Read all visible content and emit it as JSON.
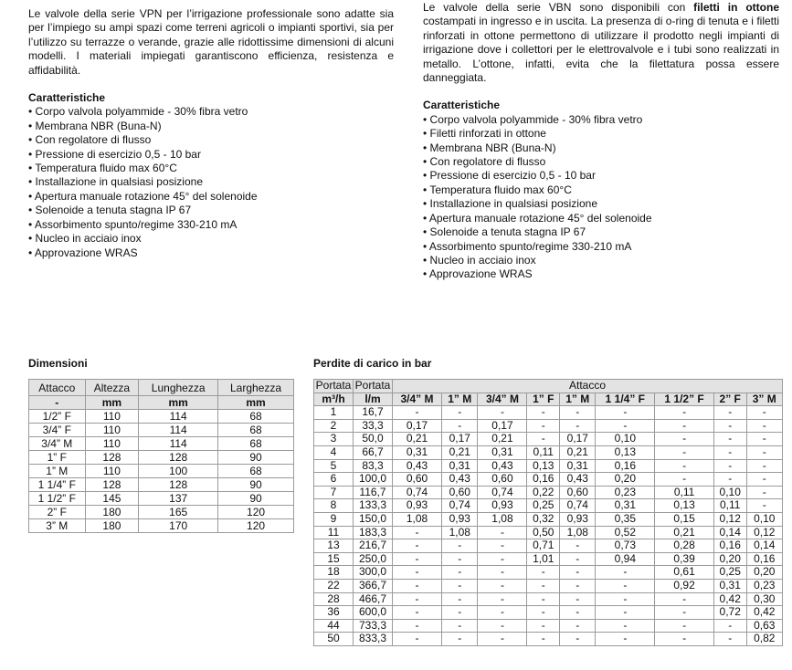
{
  "left": {
    "intro": "Le valvole della serie VPN per l’irrigazione professionale sono adatte sia per l’impiego su ampi spazi come terreni agricoli o impianti sportivi, sia per l’utilizzo su terrazze o verande, grazie alle ridottissime dimensioni di alcuni modelli. I materiali impiegati garantiscono efficienza, resistenza e affidabilità.",
    "features_title": "Caratteristiche",
    "features": [
      "Corpo valvola polyammide - 30% fibra vetro",
      "Membrana NBR (Buna-N)",
      "Con regolatore di flusso",
      "Pressione di esercizio 0,5 - 10 bar",
      "Temperatura fluido max 60°C",
      "Installazione in qualsiasi posizione",
      "Apertura manuale rotazione 45° del solenoide",
      "Solenoide a tenuta stagna IP 67",
      "Assorbimento spunto/regime 330-210 mA",
      "Nucleo in acciaio inox",
      "Approvazione WRAS"
    ]
  },
  "right": {
    "intro_a": "Le valvole della serie VBN sono disponibili con ",
    "intro_bold": "filetti in ottone",
    "intro_b": " costampati in ingresso e in uscita. La presenza di o-ring di tenuta e i filetti rinforzati in ottone permettono di utilizzare il prodotto negli impianti di irrigazione dove i collettori per le elettrovalvole e i tubi sono realizzati in metallo. L’ottone, infatti, evita che la filettatura possa essere danneggiata.",
    "features_title": "Caratteristiche",
    "features": [
      "Corpo valvola polyammide - 30% fibra vetro",
      "Filetti rinforzati in ottone",
      "Membrana NBR (Buna-N)",
      "Con regolatore di flusso",
      "Pressione di esercizio 0,5 - 10 bar",
      "Temperatura fluido max 60°C",
      "Installazione in qualsiasi posizione",
      "Apertura manuale rotazione 45° del solenoide",
      "Solenoide a tenuta stagna IP 67",
      "Assorbimento spunto/regime 330-210 mA",
      "Nucleo in acciaio inox",
      "Approvazione WRAS"
    ]
  },
  "dimensions": {
    "title": "Dimensioni",
    "headers": [
      "Attacco",
      "Altezza",
      "Lunghezza",
      "Larghezza"
    ],
    "units": [
      "-",
      "mm",
      "mm",
      "mm"
    ],
    "rows": [
      [
        "1/2” F",
        "110",
        "114",
        "68"
      ],
      [
        "3/4” F",
        "110",
        "114",
        "68"
      ],
      [
        "3/4” M",
        "110",
        "114",
        "68"
      ],
      [
        "1” F",
        "128",
        "128",
        "90"
      ],
      [
        "1” M",
        "110",
        "100",
        "68"
      ],
      [
        "1 1/4” F",
        "128",
        "128",
        "90"
      ],
      [
        "1 1/2” F",
        "145",
        "137",
        "90"
      ],
      [
        "2” F",
        "180",
        "165",
        "120"
      ],
      [
        "3” M",
        "180",
        "170",
        "120"
      ]
    ]
  },
  "pressure_loss": {
    "title": "Perdite di carico in bar",
    "header_portata": [
      "Portata",
      "Portata"
    ],
    "header_group": "Attacco",
    "units": [
      "m³/h",
      "l/m"
    ],
    "columns": [
      "3/4” M",
      "1” M",
      "3/4” M",
      "1” F",
      "1” M",
      "1 1/4” F",
      "1 1/2” F",
      "2” F",
      "3” M"
    ],
    "rows": [
      [
        "1",
        "16,7",
        "-",
        "-",
        "-",
        "-",
        "-",
        "-",
        "-",
        "-",
        "-"
      ],
      [
        "2",
        "33,3",
        "0,17",
        "-",
        "0,17",
        "-",
        "-",
        "-",
        "-",
        "-",
        "-"
      ],
      [
        "3",
        "50,0",
        "0,21",
        "0,17",
        "0,21",
        "-",
        "0,17",
        "0,10",
        "-",
        "-",
        "-"
      ],
      [
        "4",
        "66,7",
        "0,31",
        "0,21",
        "0,31",
        "0,11",
        "0,21",
        "0,13",
        "-",
        "-",
        "-"
      ],
      [
        "5",
        "83,3",
        "0,43",
        "0,31",
        "0,43",
        "0,13",
        "0,31",
        "0,16",
        "-",
        "-",
        "-"
      ],
      [
        "6",
        "100,0",
        "0,60",
        "0,43",
        "0,60",
        "0,16",
        "0,43",
        "0,20",
        "-",
        "-",
        "-"
      ],
      [
        "7",
        "116,7",
        "0,74",
        "0,60",
        "0,74",
        "0,22",
        "0,60",
        "0,23",
        "0,11",
        "0,10",
        "-"
      ],
      [
        "8",
        "133,3",
        "0,93",
        "0,74",
        "0,93",
        "0,25",
        "0,74",
        "0,31",
        "0,13",
        "0,11",
        "-"
      ],
      [
        "9",
        "150,0",
        "1,08",
        "0,93",
        "1,08",
        "0,32",
        "0,93",
        "0,35",
        "0,15",
        "0,12",
        "0,10"
      ],
      [
        "11",
        "183,3",
        "-",
        "1,08",
        "-",
        "0,50",
        "1,08",
        "0,52",
        "0,21",
        "0,14",
        "0,12"
      ],
      [
        "13",
        "216,7",
        "-",
        "-",
        "-",
        "0,71",
        "-",
        "0,73",
        "0,28",
        "0,16",
        "0,14"
      ],
      [
        "15",
        "250,0",
        "-",
        "-",
        "-",
        "1,01",
        "-",
        "0,94",
        "0,39",
        "0,20",
        "0,16"
      ],
      [
        "18",
        "300,0",
        "-",
        "-",
        "-",
        "-",
        "-",
        "-",
        "0,61",
        "0,25",
        "0,20"
      ],
      [
        "22",
        "366,7",
        "-",
        "-",
        "-",
        "-",
        "-",
        "-",
        "0,92",
        "0,31",
        "0,23"
      ],
      [
        "28",
        "466,7",
        "-",
        "-",
        "-",
        "-",
        "-",
        "-",
        "-",
        "0,42",
        "0,30"
      ],
      [
        "36",
        "600,0",
        "-",
        "-",
        "-",
        "-",
        "-",
        "-",
        "-",
        "0,72",
        "0,42"
      ],
      [
        "44",
        "733,3",
        "-",
        "-",
        "-",
        "-",
        "-",
        "-",
        "-",
        "-",
        "0,63"
      ],
      [
        "50",
        "833,3",
        "-",
        "-",
        "-",
        "-",
        "-",
        "-",
        "-",
        "-",
        "0,82"
      ]
    ]
  }
}
